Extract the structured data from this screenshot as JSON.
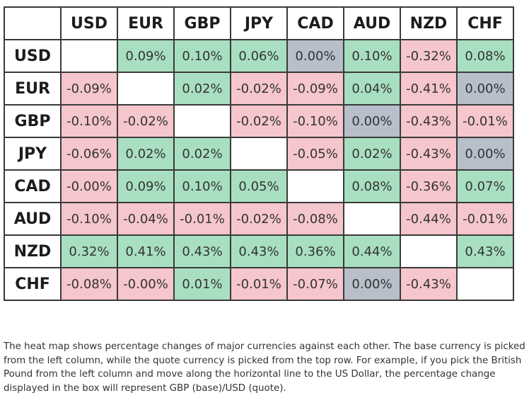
{
  "chart_data": {
    "type": "heatmap",
    "columns": [
      "USD",
      "EUR",
      "GBP",
      "JPY",
      "CAD",
      "AUD",
      "NZD",
      "CHF"
    ],
    "rows": [
      "USD",
      "EUR",
      "GBP",
      "JPY",
      "CAD",
      "AUD",
      "NZD",
      "CHF"
    ],
    "cells": [
      [
        "",
        "0.09%",
        "0.10%",
        "0.06%",
        "0.00%",
        "0.10%",
        "-0.32%",
        "0.08%"
      ],
      [
        "-0.09%",
        "",
        "0.02%",
        "-0.02%",
        "-0.09%",
        "0.04%",
        "-0.41%",
        "0.00%"
      ],
      [
        "-0.10%",
        "-0.02%",
        "",
        "-0.02%",
        "-0.10%",
        "0.00%",
        "-0.43%",
        "-0.01%"
      ],
      [
        "-0.06%",
        "0.02%",
        "0.02%",
        "",
        "-0.05%",
        "0.02%",
        "-0.43%",
        "0.00%"
      ],
      [
        "-0.00%",
        "0.09%",
        "0.10%",
        "0.05%",
        "",
        "0.08%",
        "-0.36%",
        "0.07%"
      ],
      [
        "-0.10%",
        "-0.04%",
        "-0.01%",
        "-0.02%",
        "-0.08%",
        "",
        "-0.44%",
        "-0.01%"
      ],
      [
        "0.32%",
        "0.41%",
        "0.43%",
        "0.43%",
        "0.36%",
        "0.44%",
        "",
        "0.43%"
      ],
      [
        "-0.08%",
        "-0.00%",
        "0.01%",
        "-0.01%",
        "-0.07%",
        "0.00%",
        "-0.43%",
        ""
      ]
    ],
    "colors": {
      "positive": "#a8dfc0",
      "negative": "#f5c6cb",
      "zero": "#b7bfca",
      "empty": "#ffffff"
    }
  },
  "caption": "The heat map shows percentage changes of major currencies against each other. The base currency is picked from the left column, while the quote currency is picked from the top row. For example, if you pick the British Pound from the left column and move along the horizontal line to the US Dollar, the percentage change displayed in the box will represent GBP (base)/USD (quote)."
}
